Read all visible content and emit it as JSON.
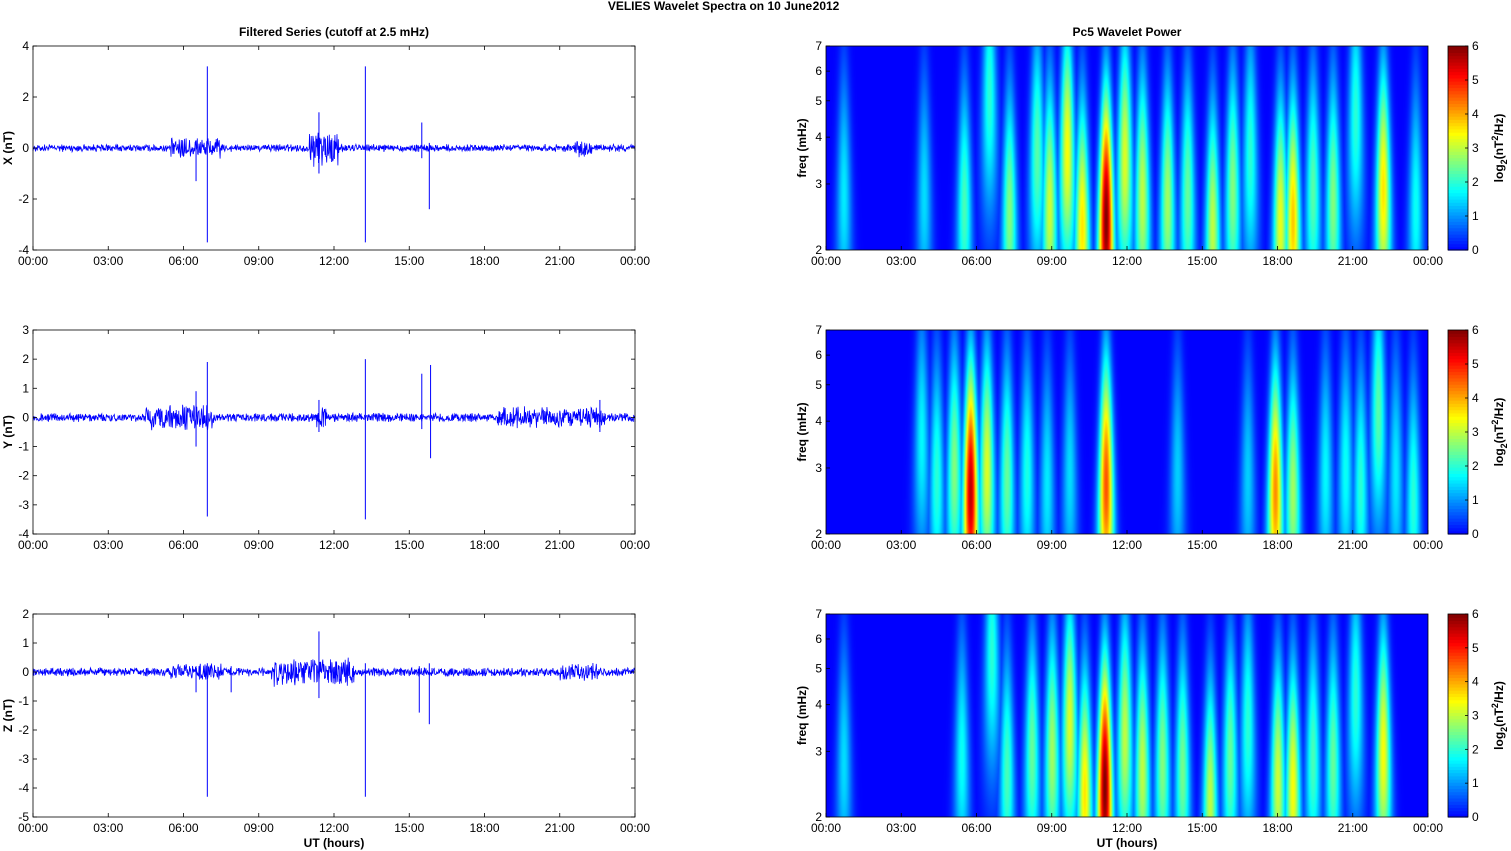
{
  "figure": {
    "title_left": "VELIES Wavelet Spectra on 10 June",
    "title_right": "2012"
  },
  "left_column": {
    "title": "Filtered Series (cutoff at 2.5 mHz)",
    "xlabel": "UT (hours)"
  },
  "right_column": {
    "title": "Pc5 Wavelet Power",
    "xlabel": "UT (hours)",
    "ylabel": "freq (mHz)",
    "colorbar_label": "log2(nT^2/Hz)"
  },
  "colors": {
    "trace": "#0000ff",
    "background": "#00008f",
    "colormap": "jet"
  },
  "chart_data": [
    {
      "type": "line",
      "component": "X",
      "ylabel": "X (nT)",
      "ylim": [
        -4,
        4
      ],
      "yticks": [
        -4,
        -2,
        0,
        2,
        4
      ],
      "xticks": [
        "00:00",
        "03:00",
        "06:00",
        "09:00",
        "12:00",
        "15:00",
        "18:00",
        "21:00",
        "00:00"
      ],
      "xlim_hours": [
        0,
        24
      ],
      "baseline_amplitude_nT": 0.12,
      "disturbed_intervals": [
        {
          "start": 5.5,
          "end": 7.5,
          "amp": 0.35
        },
        {
          "start": 11.0,
          "end": 12.2,
          "amp": 0.6
        },
        {
          "start": 21.5,
          "end": 22.3,
          "amp": 0.3
        }
      ],
      "spikes": [
        {
          "t": 6.5,
          "min": -1.3,
          "max": 0.3
        },
        {
          "t": 6.95,
          "min": -3.7,
          "max": 3.2
        },
        {
          "t": 11.4,
          "min": -1.0,
          "max": 1.4
        },
        {
          "t": 13.25,
          "min": -3.7,
          "max": 3.2
        },
        {
          "t": 15.5,
          "min": -0.4,
          "max": 1.0
        },
        {
          "t": 15.8,
          "min": -2.4,
          "max": 0.2
        }
      ]
    },
    {
      "type": "line",
      "component": "Y",
      "ylabel": "Y (nT)",
      "ylim": [
        -4,
        3
      ],
      "yticks": [
        -4,
        -3,
        -2,
        -1,
        0,
        1,
        2,
        3
      ],
      "xticks": [
        "00:00",
        "03:00",
        "06:00",
        "09:00",
        "12:00",
        "15:00",
        "18:00",
        "21:00",
        "00:00"
      ],
      "xlim_hours": [
        0,
        24
      ],
      "baseline_amplitude_nT": 0.12,
      "disturbed_intervals": [
        {
          "start": 4.5,
          "end": 7.2,
          "amp": 0.35
        },
        {
          "start": 11.2,
          "end": 11.8,
          "amp": 0.3
        },
        {
          "start": 18.5,
          "end": 22.8,
          "amp": 0.3
        }
      ],
      "spikes": [
        {
          "t": 6.5,
          "min": -1.0,
          "max": 0.9
        },
        {
          "t": 6.95,
          "min": -3.4,
          "max": 1.9
        },
        {
          "t": 11.4,
          "min": -0.5,
          "max": 0.6
        },
        {
          "t": 13.25,
          "min": -3.5,
          "max": 2.0
        },
        {
          "t": 15.5,
          "min": -0.4,
          "max": 1.5
        },
        {
          "t": 15.85,
          "min": -1.4,
          "max": 1.8
        },
        {
          "t": 22.6,
          "min": -0.5,
          "max": 0.6
        }
      ]
    },
    {
      "type": "line",
      "component": "Z",
      "ylabel": "Z (nT)",
      "ylim": [
        -5,
        2
      ],
      "yticks": [
        -5,
        -4,
        -3,
        -2,
        -1,
        0,
        1,
        2
      ],
      "xticks": [
        "00:00",
        "03:00",
        "06:00",
        "09:00",
        "12:00",
        "15:00",
        "18:00",
        "21:00",
        "00:00"
      ],
      "xlim_hours": [
        0,
        24
      ],
      "baseline_amplitude_nT": 0.12,
      "disturbed_intervals": [
        {
          "start": 9.5,
          "end": 12.8,
          "amp": 0.4
        },
        {
          "start": 5.5,
          "end": 7.5,
          "amp": 0.25
        },
        {
          "start": 21.0,
          "end": 22.5,
          "amp": 0.25
        }
      ],
      "spikes": [
        {
          "t": 6.5,
          "min": -0.7,
          "max": 0.2
        },
        {
          "t": 6.95,
          "min": -4.3,
          "max": 0.3
        },
        {
          "t": 7.9,
          "min": -0.7,
          "max": 0.2
        },
        {
          "t": 11.4,
          "min": -0.9,
          "max": 1.4
        },
        {
          "t": 13.25,
          "min": -4.3,
          "max": 0.3
        },
        {
          "t": 15.4,
          "min": -1.4,
          "max": 0.2
        },
        {
          "t": 15.8,
          "min": -1.8,
          "max": 0.3
        }
      ]
    },
    {
      "type": "heatmap",
      "component": "X",
      "ylabel": "freq (mHz)",
      "yscale": "log",
      "ylim_mHz": [
        2,
        7
      ],
      "yticks": [
        2,
        3,
        4,
        5,
        6,
        7
      ],
      "xticks": [
        "00:00",
        "03:00",
        "06:00",
        "09:00",
        "12:00",
        "15:00",
        "18:00",
        "21:00",
        "00:00"
      ],
      "xlim_hours": [
        0,
        24
      ],
      "clim": [
        0,
        6
      ],
      "colorbar_ticks": [
        0,
        1,
        2,
        3,
        4,
        5,
        6
      ],
      "bursts": [
        {
          "t": 0.7,
          "f": 2.8,
          "power": 1.6
        },
        {
          "t": 3.9,
          "f": 2.8,
          "power": 1.5
        },
        {
          "t": 5.5,
          "f": 2.6,
          "power": 2.2
        },
        {
          "t": 6.5,
          "f": 5.2,
          "power": 2.0
        },
        {
          "t": 7.3,
          "f": 2.5,
          "power": 2.6
        },
        {
          "t": 8.4,
          "f": 3.6,
          "power": 2.3
        },
        {
          "t": 8.9,
          "f": 2.6,
          "power": 3.1
        },
        {
          "t": 9.6,
          "f": 3.7,
          "power": 3.4
        },
        {
          "t": 10.2,
          "f": 2.3,
          "power": 3.6
        },
        {
          "t": 11.15,
          "f": 2.4,
          "power": 6.0
        },
        {
          "t": 11.9,
          "f": 3.5,
          "power": 3.2
        },
        {
          "t": 12.6,
          "f": 2.8,
          "power": 3.0
        },
        {
          "t": 13.6,
          "f": 2.7,
          "power": 2.8
        },
        {
          "t": 14.4,
          "f": 2.8,
          "power": 2.4
        },
        {
          "t": 15.4,
          "f": 2.3,
          "power": 3.0
        },
        {
          "t": 16.2,
          "f": 2.9,
          "power": 2.6
        },
        {
          "t": 16.9,
          "f": 3.6,
          "power": 2.0
        },
        {
          "t": 18.1,
          "f": 2.4,
          "power": 3.3
        },
        {
          "t": 18.6,
          "f": 2.4,
          "power": 3.8
        },
        {
          "t": 19.4,
          "f": 2.9,
          "power": 2.3
        },
        {
          "t": 20.2,
          "f": 2.7,
          "power": 2.6
        },
        {
          "t": 21.1,
          "f": 4.5,
          "power": 2.0
        },
        {
          "t": 22.2,
          "f": 2.9,
          "power": 3.6
        },
        {
          "t": 23.5,
          "f": 2.6,
          "power": 1.8
        }
      ]
    },
    {
      "type": "heatmap",
      "component": "Y",
      "ylabel": "freq (mHz)",
      "yscale": "log",
      "ylim_mHz": [
        2,
        7
      ],
      "yticks": [
        2,
        3,
        4,
        5,
        6,
        7
      ],
      "xticks": [
        "00:00",
        "03:00",
        "06:00",
        "09:00",
        "12:00",
        "15:00",
        "18:00",
        "21:00",
        "00:00"
      ],
      "xlim_hours": [
        0,
        24
      ],
      "clim": [
        0,
        6
      ],
      "colorbar_ticks": [
        0,
        1,
        2,
        3,
        4,
        5,
        6
      ],
      "bursts": [
        {
          "t": 3.8,
          "f": 3.6,
          "power": 1.7
        },
        {
          "t": 4.4,
          "f": 2.8,
          "power": 2.0
        },
        {
          "t": 5.1,
          "f": 3.0,
          "power": 2.6
        },
        {
          "t": 5.75,
          "f": 2.6,
          "power": 5.6
        },
        {
          "t": 6.4,
          "f": 3.0,
          "power": 3.2
        },
        {
          "t": 7.2,
          "f": 2.8,
          "power": 2.4
        },
        {
          "t": 8.0,
          "f": 2.9,
          "power": 1.9
        },
        {
          "t": 8.8,
          "f": 2.7,
          "power": 1.6
        },
        {
          "t": 9.7,
          "f": 2.9,
          "power": 1.5
        },
        {
          "t": 11.15,
          "f": 2.7,
          "power": 4.6
        },
        {
          "t": 14.0,
          "f": 2.9,
          "power": 1.4
        },
        {
          "t": 16.8,
          "f": 2.8,
          "power": 1.4
        },
        {
          "t": 17.9,
          "f": 2.6,
          "power": 4.2
        },
        {
          "t": 18.6,
          "f": 2.6,
          "power": 2.8
        },
        {
          "t": 19.9,
          "f": 2.9,
          "power": 1.7
        },
        {
          "t": 20.7,
          "f": 3.0,
          "power": 1.8
        },
        {
          "t": 21.3,
          "f": 2.7,
          "power": 2.0
        },
        {
          "t": 22.0,
          "f": 4.3,
          "power": 2.3
        },
        {
          "t": 22.7,
          "f": 2.9,
          "power": 1.6
        },
        {
          "t": 23.4,
          "f": 2.5,
          "power": 2.0
        }
      ]
    },
    {
      "type": "heatmap",
      "component": "Z",
      "ylabel": "freq (mHz)",
      "yscale": "log",
      "ylim_mHz": [
        2,
        7
      ],
      "yticks": [
        2,
        3,
        4,
        5,
        6,
        7
      ],
      "xticks": [
        "00:00",
        "03:00",
        "06:00",
        "09:00",
        "12:00",
        "15:00",
        "18:00",
        "21:00",
        "00:00"
      ],
      "xlim_hours": [
        0,
        24
      ],
      "clim": [
        0,
        6
      ],
      "colorbar_ticks": [
        0,
        1,
        2,
        3,
        4,
        5,
        6
      ],
      "bursts": [
        {
          "t": 0.7,
          "f": 2.8,
          "power": 1.5
        },
        {
          "t": 5.4,
          "f": 2.9,
          "power": 1.8
        },
        {
          "t": 6.6,
          "f": 5.5,
          "power": 2.0
        },
        {
          "t": 7.2,
          "f": 2.6,
          "power": 2.2
        },
        {
          "t": 8.2,
          "f": 3.0,
          "power": 2.4
        },
        {
          "t": 9.0,
          "f": 3.0,
          "power": 2.8
        },
        {
          "t": 9.7,
          "f": 3.6,
          "power": 3.2
        },
        {
          "t": 10.3,
          "f": 2.3,
          "power": 3.6
        },
        {
          "t": 11.1,
          "f": 2.4,
          "power": 6.0
        },
        {
          "t": 11.9,
          "f": 3.3,
          "power": 3.0
        },
        {
          "t": 12.6,
          "f": 2.7,
          "power": 3.0
        },
        {
          "t": 13.4,
          "f": 2.8,
          "power": 2.6
        },
        {
          "t": 14.2,
          "f": 2.7,
          "power": 2.5
        },
        {
          "t": 15.3,
          "f": 2.2,
          "power": 3.0
        },
        {
          "t": 16.1,
          "f": 2.9,
          "power": 2.4
        },
        {
          "t": 16.8,
          "f": 3.5,
          "power": 2.0
        },
        {
          "t": 18.0,
          "f": 2.5,
          "power": 3.1
        },
        {
          "t": 18.6,
          "f": 2.4,
          "power": 3.4
        },
        {
          "t": 19.4,
          "f": 2.9,
          "power": 2.2
        },
        {
          "t": 20.2,
          "f": 2.8,
          "power": 2.4
        },
        {
          "t": 21.1,
          "f": 4.2,
          "power": 2.0
        },
        {
          "t": 22.2,
          "f": 3.0,
          "power": 3.4
        }
      ]
    }
  ]
}
